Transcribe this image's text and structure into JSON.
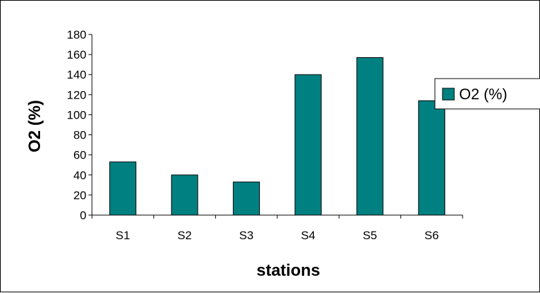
{
  "chart_data": {
    "type": "bar",
    "title": "",
    "xlabel": "stations",
    "ylabel": "O2 (%)",
    "categories": [
      "S1",
      "S2",
      "S3",
      "S4",
      "S5",
      "S6"
    ],
    "series": [
      {
        "name": "O2 (%)",
        "values": [
          53,
          40,
          33,
          140,
          157,
          114
        ]
      }
    ],
    "ylim": [
      0,
      180
    ],
    "yticks": [
      0,
      20,
      40,
      60,
      80,
      100,
      120,
      140,
      160,
      180
    ],
    "grid": false,
    "legend_position": "right",
    "colors": {
      "bar": "#008080",
      "bar_stroke": "#000000",
      "axis": "#000000"
    }
  }
}
